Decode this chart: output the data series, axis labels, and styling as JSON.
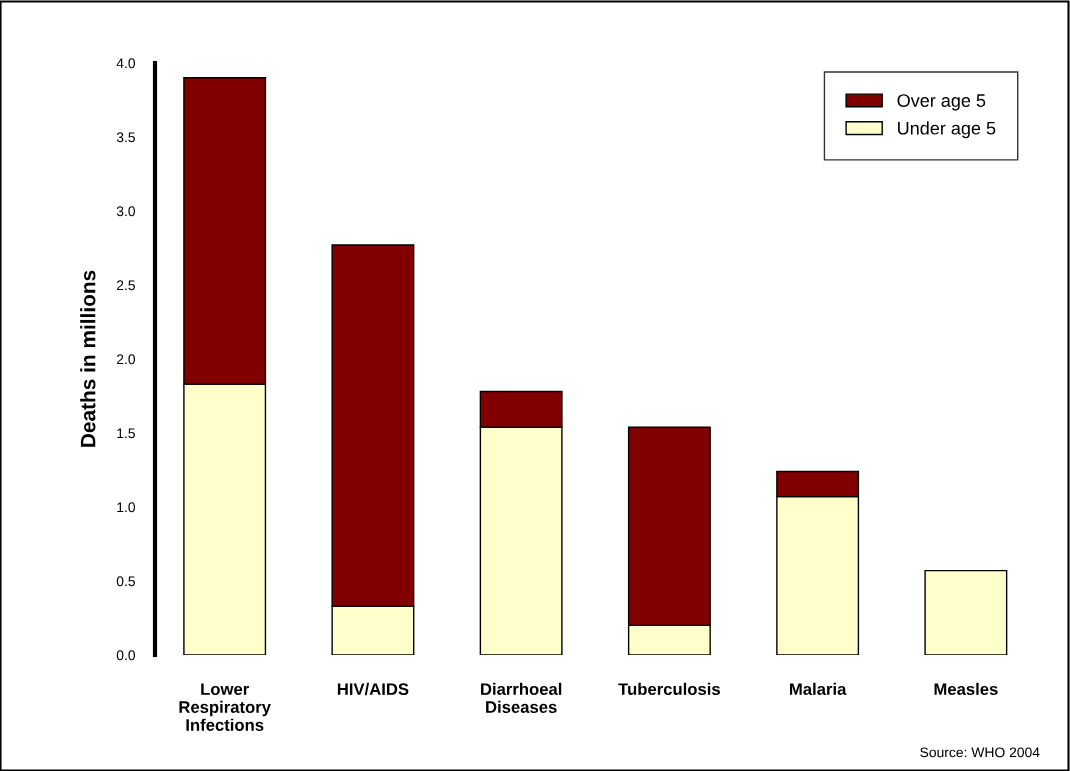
{
  "chart_data": {
    "type": "bar",
    "stacked": true,
    "ylabel": "Deaths in millions",
    "categories": [
      "Lower\nRespiratory\nInfections",
      "HIV/AIDS",
      "Diarrhoeal\nDiseases",
      "Tuberculosis",
      "Malaria",
      "Measles"
    ],
    "series": [
      {
        "name": "Under age 5",
        "color": "#ffffcc",
        "values": [
          1.83,
          0.33,
          1.54,
          0.2,
          1.07,
          0.57
        ]
      },
      {
        "name": "Over age 5",
        "color": "#800000",
        "values": [
          2.07,
          2.44,
          0.24,
          1.34,
          0.17,
          null
        ]
      }
    ],
    "ylim": [
      0,
      4
    ],
    "yticks": [
      {
        "value": 0,
        "label": "0.0"
      },
      0.5,
      {
        "value": 1,
        "label": "1.0"
      },
      1.5,
      {
        "value": 2,
        "label": "2.0"
      },
      2.5,
      {
        "value": 3,
        "label": "3.0"
      },
      3.5,
      {
        "value": 4,
        "label": "4.0"
      }
    ],
    "grid": false,
    "legend": "top right",
    "annotations": [
      "Source: WHO 2004"
    ]
  }
}
